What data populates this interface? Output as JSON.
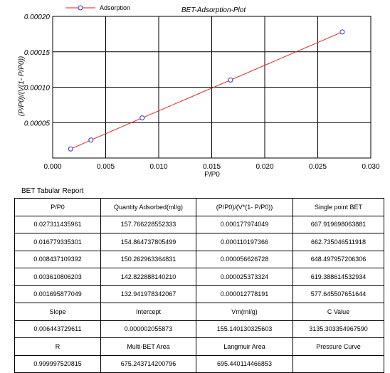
{
  "chart_data": {
    "type": "line",
    "title": "BET-Adsorption-Plot",
    "xlabel": "P/P0",
    "ylabel": "(P/P0)/(V(1- P/P0))",
    "xlim": [
      0.0,
      0.03
    ],
    "ylim": [
      0.0,
      0.0002
    ],
    "x_ticks": [
      0.0,
      0.005,
      0.01,
      0.015,
      0.02,
      0.025,
      0.03
    ],
    "x_tick_labels": [
      "0.000",
      "0.005",
      "0.010",
      "0.015",
      "0.020",
      "0.025",
      "0.030"
    ],
    "y_ticks": [
      5e-05,
      0.0001,
      0.00015,
      0.0002
    ],
    "y_tick_labels": [
      "0.00005",
      "0.00010",
      "0.00015",
      "0.00020"
    ],
    "grid": true,
    "legend": "top-left",
    "series": [
      {
        "name": "Adsorption",
        "marker_color": "#3030c0",
        "line_color": "#e02020",
        "x": [
          0.001695877049,
          0.003610806203,
          0.008437109392,
          0.016779335301,
          0.027311435961
        ],
        "y": [
          1.2778191e-05,
          2.5373324e-05,
          5.6626728e-05,
          0.000110197366,
          0.000177974049
        ]
      }
    ]
  },
  "report": {
    "title": "BET Tabular Report",
    "headers": [
      "P/P0",
      "Quantity Adsorbed(ml/g)",
      "(P/P0)/(V*(1- P/P0))",
      "Single point BET"
    ],
    "rows": [
      [
        "0.027311435961",
        "157.766228552333",
        "0.000177974049",
        "667.919698063881"
      ],
      [
        "0.016779335301",
        "154.864737805499",
        "0.000110197366",
        "662.735046511918"
      ],
      [
        "0.008437109392",
        "150.262963364831",
        "0.000056626728",
        "648.497957206306"
      ],
      [
        "0.003610806203",
        "142.822888140210",
        "0.000025373324",
        "619.388614532934"
      ],
      [
        "0.001695877049",
        "132.941978342067",
        "0.000012778191",
        "577.645507651644"
      ]
    ],
    "stats_labels_1": [
      "Slope",
      "Intercept",
      "Vm(ml/g)",
      "C Value"
    ],
    "stats_values_1": [
      "0.006443729611",
      "0.000002055873",
      "155.140130325603",
      "3135.303354967590"
    ],
    "stats_labels_2": [
      "R",
      "Multi-BET Area",
      "Langmuir Area",
      "Pressure Curve"
    ],
    "stats_values_2": [
      "0.999997520815",
      "675.243714200796",
      "695.440114466853",
      ""
    ]
  }
}
